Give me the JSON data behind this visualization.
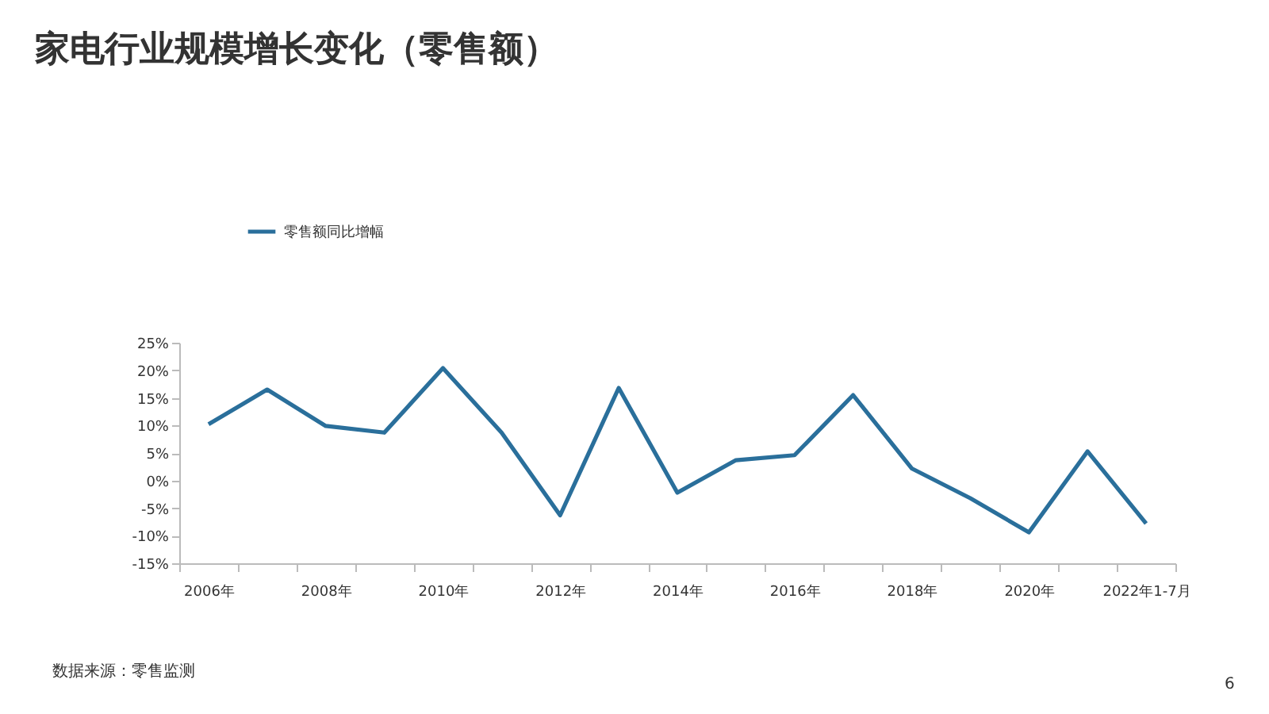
{
  "chart_data": {
    "type": "line",
    "title": "家电行业规模增长变化（零售额）",
    "categories": [
      "2006年",
      null,
      "2008年",
      null,
      "2010年",
      null,
      "2012年",
      null,
      "2014年",
      null,
      "2016年",
      null,
      "2018年",
      null,
      "2020年",
      null,
      "2022年1-7月"
    ],
    "series": [
      {
        "name": "零售额同比增幅",
        "color": "#2a6f9b",
        "values": [
          10.2,
          16.5,
          9.9,
          8.7,
          20.4,
          8.7,
          -6.3,
          16.8,
          -2.2,
          3.7,
          4.6,
          15.5,
          2.2,
          -3.2,
          -9.4,
          5.3,
          -7.8
        ]
      }
    ],
    "ylim": [
      -15,
      25
    ],
    "yticks": [
      {
        "value": -15,
        "label": "-15%"
      },
      {
        "value": -10,
        "label": "-10%"
      },
      {
        "value": -5,
        "label": "-5%"
      },
      {
        "value": 0,
        "label": "0%"
      },
      {
        "value": 5,
        "label": "5%"
      },
      {
        "value": 10,
        "label": "10%"
      },
      {
        "value": 15,
        "label": "15%"
      },
      {
        "value": 20,
        "label": "20%"
      },
      {
        "value": 25,
        "label": "25%"
      }
    ],
    "grid": false,
    "legend": "top",
    "marker": "none",
    "line_style": "solid",
    "annotations": [
      "数据来源：零售监测",
      "6"
    ]
  }
}
